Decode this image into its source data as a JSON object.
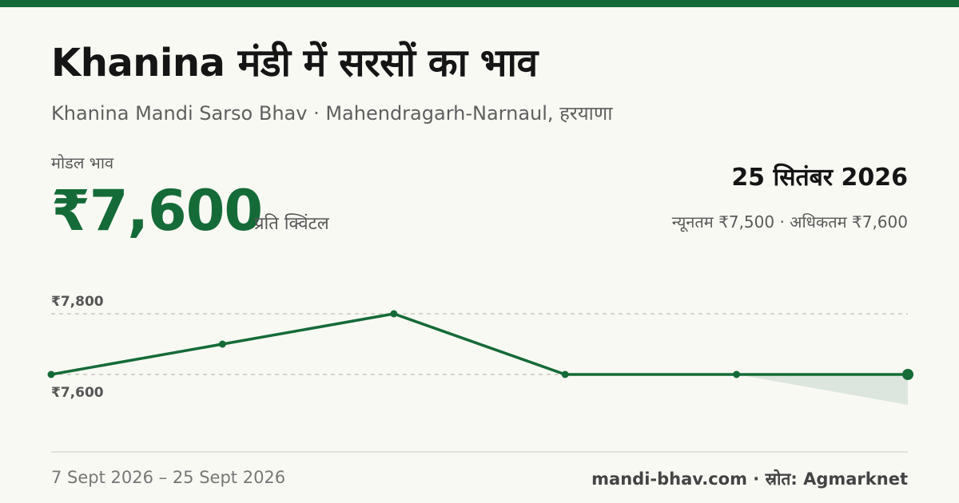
{
  "header": {
    "title": "Khanina मंडी में सरसों का भाव",
    "subtitle": "Khanina Mandi Sarso Bhav · Mahendragarh-Narnaul, हरयाणा"
  },
  "price": {
    "label": "मोडल भाव",
    "value": "₹7,600",
    "unit": "प्रति क्विंटल",
    "date": "25 सितंबर 2026",
    "range": "न्यूनतम ₹7,500 · अधिकतम ₹7,600"
  },
  "colors": {
    "accent": "#156b38",
    "band": "#dce6de"
  },
  "chart_data": {
    "type": "line",
    "x": [
      "7 Sept 2026",
      "",
      "",
      "",
      "",
      "25 Sept 2026"
    ],
    "series": [
      {
        "values": [
          7600,
          7700,
          7800,
          7600,
          7600,
          7600
        ]
      }
    ],
    "min_band_last_segment": [
      7600,
      7500
    ],
    "ylim": [
      7500,
      7800
    ],
    "y_tick_labels": [
      {
        "value": 7800,
        "label": "₹7,800"
      },
      {
        "value": 7600,
        "label": "₹7,600"
      }
    ],
    "grid": "dashed horizontal at tick values"
  },
  "footer": {
    "date_range": "7 Sept 2026 – 25 Sept 2026",
    "source": "mandi-bhav.com · स्रोत: Agmarknet"
  }
}
